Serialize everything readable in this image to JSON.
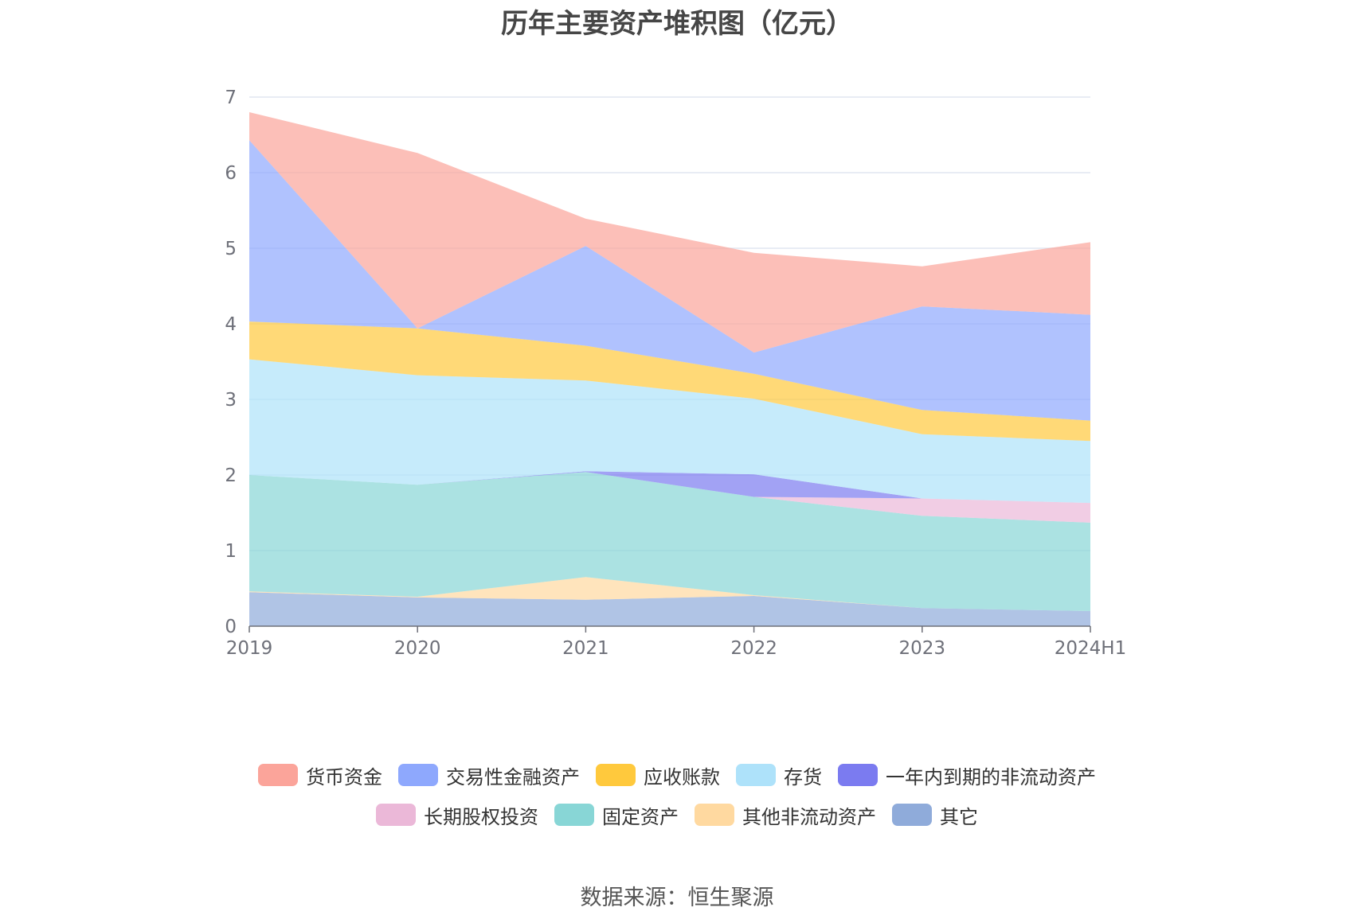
{
  "chart_data": {
    "type": "area",
    "stacked": true,
    "title": "历年主要资产堆积图（亿元）",
    "xlabel": "",
    "ylabel": "",
    "categories": [
      "2019",
      "2020",
      "2021",
      "2022",
      "2023",
      "2024H1"
    ],
    "ylim": [
      0,
      7
    ],
    "yticks": [
      0,
      1,
      2,
      3,
      4,
      5,
      6,
      7
    ],
    "grid": true,
    "legend_position": "bottom",
    "series": [
      {
        "name": "其它",
        "color": "#8fabda",
        "values": [
          0.45,
          0.38,
          0.35,
          0.4,
          0.24,
          0.2
        ]
      },
      {
        "name": "其他非流动资产",
        "color": "#ffd9a0",
        "values": [
          0.01,
          0.01,
          0.3,
          0.01,
          0.0,
          0.0
        ]
      },
      {
        "name": "固定资产",
        "color": "#88d6d6",
        "values": [
          1.54,
          1.48,
          1.39,
          1.3,
          1.22,
          1.17
        ]
      },
      {
        "name": "长期股权投资",
        "color": "#ebb8d8",
        "values": [
          0.0,
          0.0,
          0.0,
          0.0,
          0.23,
          0.26
        ]
      },
      {
        "name": "一年内到期的非流动资产",
        "color": "#7b7bf0",
        "values": [
          0.0,
          0.0,
          0.01,
          0.3,
          0.0,
          0.0
        ]
      },
      {
        "name": "存货",
        "color": "#aee2fa",
        "values": [
          1.53,
          1.45,
          1.2,
          1.0,
          0.85,
          0.82
        ]
      },
      {
        "name": "应收账款",
        "color": "#ffc93d",
        "values": [
          0.5,
          0.62,
          0.46,
          0.33,
          0.32,
          0.27
        ]
      },
      {
        "name": "交易性金融资产",
        "color": "#8ea8fd",
        "values": [
          2.4,
          0.0,
          1.32,
          0.28,
          1.37,
          1.4
        ]
      },
      {
        "name": "货币资金",
        "color": "#fba49a",
        "values": [
          0.37,
          2.32,
          0.36,
          1.32,
          0.53,
          0.96
        ]
      }
    ]
  },
  "legend": {
    "row1": [
      {
        "label": "货币资金",
        "color": "#fba49a"
      },
      {
        "label": "交易性金融资产",
        "color": "#8ea8fd"
      },
      {
        "label": "应收账款",
        "color": "#ffc93d"
      },
      {
        "label": "存货",
        "color": "#aee2fa"
      },
      {
        "label": "一年内到期的非流动资产",
        "color": "#7b7bf0"
      }
    ],
    "row2": [
      {
        "label": "长期股权投资",
        "color": "#ebb8d8"
      },
      {
        "label": "固定资产",
        "color": "#88d6d6"
      },
      {
        "label": "其他非流动资产",
        "color": "#ffd9a0"
      },
      {
        "label": "其它",
        "color": "#8fabda"
      }
    ]
  },
  "source": "数据来源：恒生聚源"
}
